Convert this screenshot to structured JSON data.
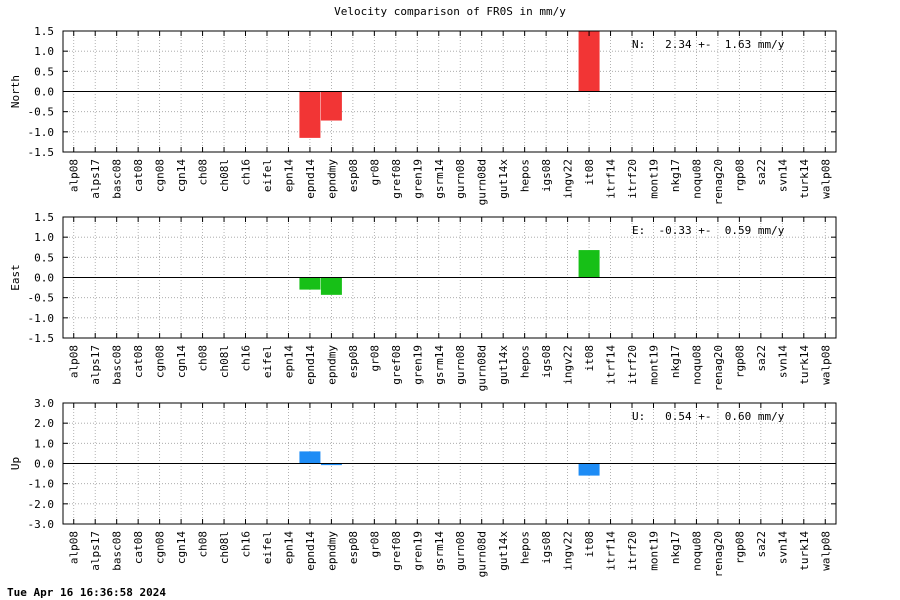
{
  "page": {
    "title": "Velocity comparison of FR0S in mm/y",
    "footer": "Tue Apr 16 16:36:58 2024"
  },
  "chart_data": [
    {
      "type": "bar",
      "title": "",
      "xlabel": "",
      "ylabel": "North",
      "ylim": [
        -1.5,
        1.5
      ],
      "yticks": [
        "-1.5",
        "-1.0",
        "-0.5",
        "0.0",
        "0.5",
        "1.0",
        "1.5"
      ],
      "grid": true,
      "color": "#f23535",
      "annotation": "N:   2.34 +-  1.63 mm/y",
      "categories": [
        "alp08",
        "alps17",
        "basc08",
        "cat08",
        "cgn08",
        "cgn14",
        "ch08",
        "ch08l",
        "ch16",
        "eifel",
        "epn14",
        "epnd14",
        "epndmy",
        "esp08",
        "gr08",
        "gref08",
        "gren19",
        "gsrm14",
        "gurn08",
        "gurn08d",
        "gut14x",
        "hepos",
        "igs08",
        "ingv22",
        "it08",
        "itrf14",
        "itrf20",
        "mont19",
        "nkg17",
        "noqu08",
        "renag20",
        "rgp08",
        "sa22",
        "svn14",
        "turk14",
        "walp08"
      ],
      "values": [
        0,
        0,
        0,
        0,
        0,
        0,
        0,
        0,
        0,
        0,
        0,
        -1.15,
        -0.72,
        0,
        0,
        0,
        0,
        0,
        0,
        0,
        0,
        0,
        0,
        0,
        1.5,
        0,
        0,
        0,
        0,
        0,
        0,
        0,
        0,
        0,
        0,
        0
      ]
    },
    {
      "type": "bar",
      "title": "",
      "xlabel": "",
      "ylabel": "East",
      "ylim": [
        -1.5,
        1.5
      ],
      "yticks": [
        "-1.5",
        "-1.0",
        "-0.5",
        "0.0",
        "0.5",
        "1.0",
        "1.5"
      ],
      "grid": true,
      "color": "#17c017",
      "annotation": "E:  -0.33 +-  0.59 mm/y",
      "categories": [
        "alp08",
        "alps17",
        "basc08",
        "cat08",
        "cgn08",
        "cgn14",
        "ch08",
        "ch08l",
        "ch16",
        "eifel",
        "epn14",
        "epnd14",
        "epndmy",
        "esp08",
        "gr08",
        "gref08",
        "gren19",
        "gsrm14",
        "gurn08",
        "gurn08d",
        "gut14x",
        "hepos",
        "igs08",
        "ingv22",
        "it08",
        "itrf14",
        "itrf20",
        "mont19",
        "nkg17",
        "noqu08",
        "renag20",
        "rgp08",
        "sa22",
        "svn14",
        "turk14",
        "walp08"
      ],
      "values": [
        0,
        0,
        0,
        0,
        0,
        0,
        0,
        0,
        0,
        0,
        0,
        -0.3,
        -0.43,
        0,
        0,
        0,
        0,
        0,
        0,
        0,
        0,
        0,
        0,
        0,
        0.68,
        0,
        0,
        0,
        0,
        0,
        0,
        0,
        0,
        0,
        0,
        0
      ]
    },
    {
      "type": "bar",
      "title": "",
      "xlabel": "",
      "ylabel": "Up",
      "ylim": [
        -3.0,
        3.0
      ],
      "yticks": [
        "-3.0",
        "-2.0",
        "-1.0",
        "0.0",
        "1.0",
        "2.0",
        "3.0"
      ],
      "grid": true,
      "color": "#1e8cf5",
      "annotation": "U:   0.54 +-  0.60 mm/y",
      "categories": [
        "alp08",
        "alps17",
        "basc08",
        "cat08",
        "cgn08",
        "cgn14",
        "ch08",
        "ch08l",
        "ch16",
        "eifel",
        "epn14",
        "epnd14",
        "epndmy",
        "esp08",
        "gr08",
        "gref08",
        "gren19",
        "gsrm14",
        "gurn08",
        "gurn08d",
        "gut14x",
        "hepos",
        "igs08",
        "ingv22",
        "it08",
        "itrf14",
        "itrf20",
        "mont19",
        "nkg17",
        "noqu08",
        "renag20",
        "rgp08",
        "sa22",
        "svn14",
        "turk14",
        "walp08"
      ],
      "values": [
        0,
        0,
        0,
        0,
        0,
        0,
        0,
        0,
        0,
        0,
        0,
        0.6,
        -0.08,
        0,
        0,
        0,
        0,
        0,
        0,
        0,
        0,
        0,
        0,
        0,
        -0.6,
        0,
        0,
        0,
        0,
        0,
        0,
        0,
        0,
        0,
        0,
        0
      ]
    }
  ]
}
